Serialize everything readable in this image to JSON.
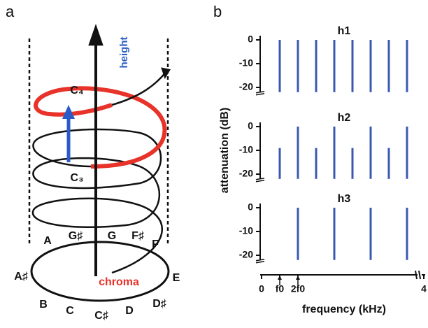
{
  "panel_a": {
    "label": "a",
    "height_label": "height",
    "chroma_label": "chroma",
    "c4": "C₄",
    "c3": "C₃",
    "notes": [
      "A",
      "G♯",
      "G",
      "F♯",
      "F",
      "E",
      "D♯",
      "D",
      "C♯",
      "C",
      "B",
      "A♯"
    ]
  },
  "panel_b": {
    "label": "b",
    "y_label": "attenuation (dB)",
    "x_axis": {
      "label": "frequency (kHz)",
      "xlim": [
        0,
        8.5
      ],
      "ticks": [
        {
          "value": 0,
          "label": "0"
        },
        {
          "value": 1,
          "label": "f0"
        },
        {
          "value": 2,
          "label": "2f0"
        }
      ],
      "break_label": "4"
    }
  },
  "chart_data": [
    {
      "type": "bar",
      "title": "h1",
      "x": [
        1,
        2,
        3,
        4,
        5,
        6,
        7,
        8
      ],
      "values": [
        0,
        0,
        0,
        0,
        0,
        0,
        0,
        0
      ],
      "ylim": [
        -22,
        0
      ],
      "yticks": [
        0,
        -10,
        -20
      ],
      "color": "#3a58b0"
    },
    {
      "type": "bar",
      "title": "h2",
      "x": [
        1,
        2,
        3,
        4,
        5,
        6,
        7,
        8
      ],
      "values": [
        -9,
        0,
        -9,
        0,
        -9,
        0,
        -9,
        0
      ],
      "ylim": [
        -22,
        0
      ],
      "yticks": [
        0,
        -10,
        -20
      ],
      "color": "#3a58b0"
    },
    {
      "type": "bar",
      "title": "h3",
      "x": [
        2,
        4,
        6,
        8
      ],
      "values": [
        0,
        0,
        0,
        0
      ],
      "ylim": [
        -22,
        0
      ],
      "yticks": [
        0,
        -10,
        -20
      ],
      "color": "#3a58b0"
    }
  ]
}
